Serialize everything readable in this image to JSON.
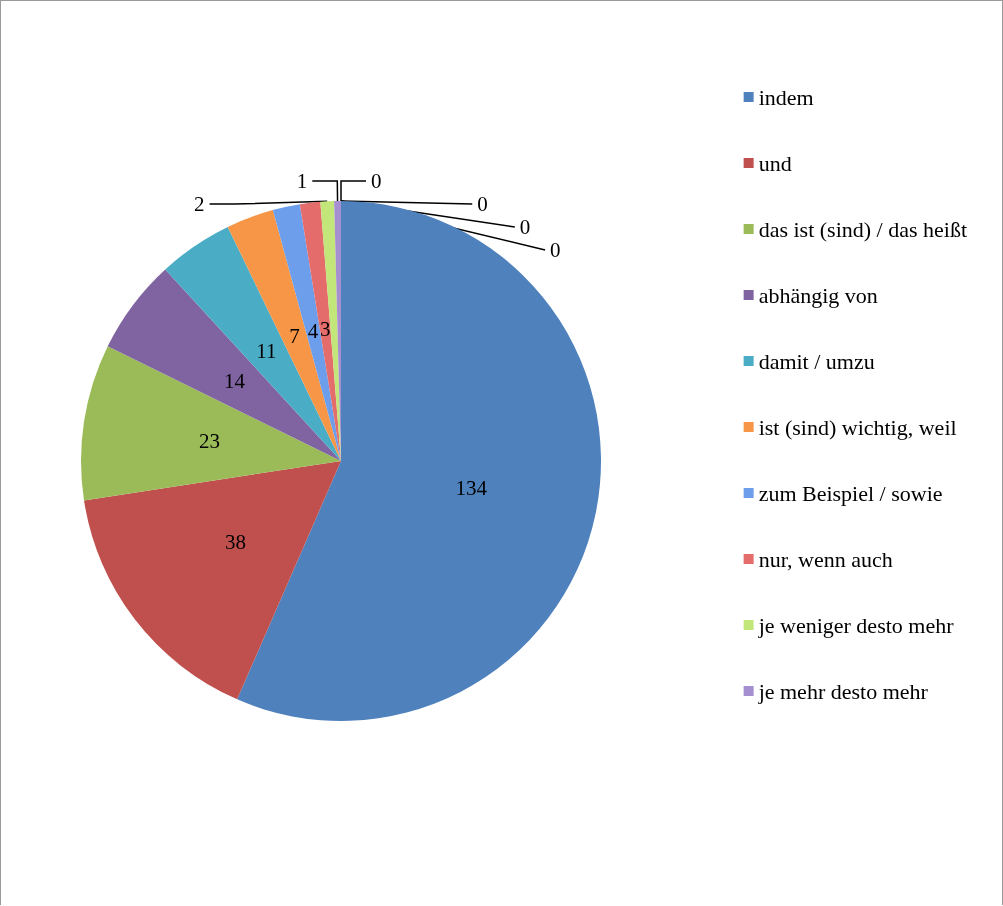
{
  "chart_data": {
    "type": "pie",
    "categories": [
      "indem",
      "und",
      "das ist (sind) / das heißt",
      "abhängig von",
      "damit / umzu",
      "ist (sind) wichtig, weil",
      "zum Beispiel / sowie",
      "nur, wenn auch",
      "je weniger desto mehr",
      "je mehr desto mehr",
      null,
      null,
      null,
      null
    ],
    "values": [
      134,
      38,
      23,
      14,
      11,
      7,
      4,
      3,
      2,
      1,
      0,
      0,
      0,
      0
    ],
    "colors": [
      "#4f81bd",
      "#c0504d",
      "#9bbb59",
      "#8064a2",
      "#4bacc6",
      "#f79646",
      "#6d9eeb",
      "#e46c6a",
      "#c3e67a",
      "#a68fd0",
      "#5fc0d8",
      "#f9ab6a",
      "#2c4d75",
      "#772c2a"
    ],
    "value_labels": [
      "134",
      "38",
      "23",
      "14",
      "11",
      "7",
      "4",
      "3",
      "2",
      "1",
      "0",
      "0",
      "0",
      "0"
    ],
    "legend": "right"
  }
}
